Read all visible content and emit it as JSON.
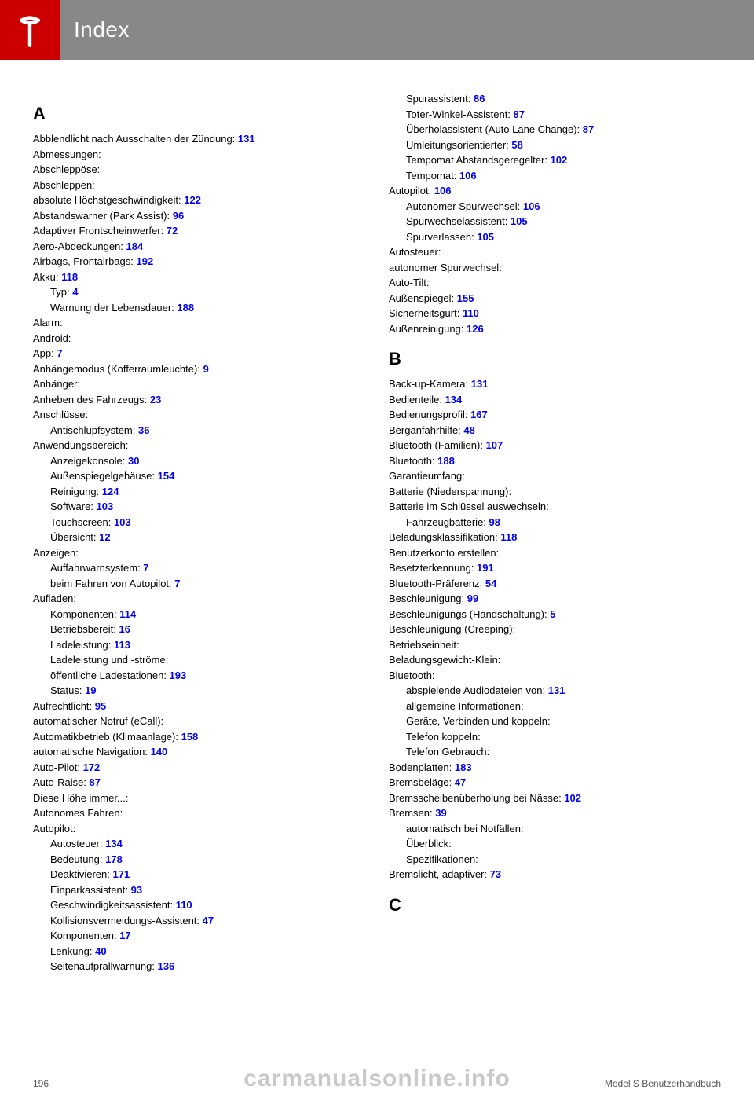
{
  "header": {
    "title": "Index"
  },
  "footer": {
    "page": "196",
    "doc": "Model S Benutzerhandbuch"
  },
  "watermark": "carmanualsonline.info",
  "left": {
    "sections": [
      {
        "letter": "A",
        "entries": [
          {
            "label": "Abblendlicht nach Ausschalten der Zündung: ",
            "page": "131",
            "sub": false
          },
          {
            "label": "Abmessungen: ",
            "page": "",
            "sub": false
          },
          {
            "label": "Abschleppöse: ",
            "page": "",
            "sub": false
          },
          {
            "label": "Abschleppen: ",
            "page": "",
            "sub": false
          },
          {
            "label": "absolute Höchstgeschwindigkeit: ",
            "page": "122",
            "sub": false
          },
          {
            "label": "Abstandswarner (Park Assist): ",
            "page": "96",
            "sub": false
          },
          {
            "label": "Adaptiver Frontscheinwerfer: ",
            "page": "72",
            "sub": false
          },
          {
            "label": "Aero-Abdeckungen: ",
            "page": "184",
            "sub": false
          },
          {
            "label": "Airbags, Frontairbags: ",
            "page": "192",
            "sub": false
          },
          {
            "label": "Akku: ",
            "page": "118",
            "sub": false
          },
          {
            "label": "Typ: ",
            "page": "4",
            "sub": true
          },
          {
            "label": "Warnung der Lebensdauer: ",
            "page": "188",
            "sub": true
          },
          {
            "label": "Alarm: ",
            "page": "",
            "sub": false
          },
          {
            "label": "Android: ",
            "page": "",
            "sub": false
          },
          {
            "label": "App: ",
            "page": "7",
            "sub": false
          },
          {
            "label": "Anhängemodus (Kofferraumleuchte): ",
            "page": "9",
            "sub": false
          },
          {
            "label": "Anhänger: ",
            "page": "",
            "sub": false
          },
          {
            "label": "Anheben des Fahrzeugs: ",
            "page": "23",
            "sub": false
          },
          {
            "label": "Anschlüsse: ",
            "page": "",
            "sub": false
          },
          {
            "label": "Antischlupfsystem: ",
            "page": "36",
            "sub": true
          },
          {
            "label": "Anwendungsbereich: ",
            "page": "",
            "sub": false
          },
          {
            "label": "Anzeigekonsole: ",
            "page": "30",
            "sub": true
          },
          {
            "label": "Außenspiegelgehäuse: ",
            "page": "154",
            "sub": true
          },
          {
            "label": "Reinigung: ",
            "page": "124",
            "sub": true
          },
          {
            "label": "Software: ",
            "page": "103",
            "sub": true
          },
          {
            "label": "Touchscreen: ",
            "page": "103",
            "sub": true
          },
          {
            "label": "Übersicht: ",
            "page": "12",
            "sub": true
          },
          {
            "label": "Anzeigen: ",
            "page": "",
            "sub": false
          },
          {
            "label": "Auffahrwarnsystem: ",
            "page": "7",
            "sub": true
          },
          {
            "label": "beim Fahren von Autopilot: ",
            "page": "7",
            "sub": true
          },
          {
            "label": "Aufladen: ",
            "page": "",
            "sub": false
          },
          {
            "label": "Komponenten: ",
            "page": "114",
            "sub": true
          },
          {
            "label": "Betriebsbereit: ",
            "page": "16",
            "sub": true
          },
          {
            "label": "Ladeleistung: ",
            "page": "113",
            "sub": true
          },
          {
            "label": "Ladeleistung und -ströme: ",
            "page": "",
            "sub": true
          },
          {
            "label": "öffentliche Ladestationen: ",
            "page": "193",
            "sub": true
          },
          {
            "label": "Status: ",
            "page": "19",
            "sub": true
          },
          {
            "label": "Aufrechtlicht: ",
            "page": "95",
            "sub": false
          },
          {
            "label": "automatischer Notruf (eCall): ",
            "page": "",
            "sub": false
          },
          {
            "label": "Automatikbetrieb (Klimaanlage): ",
            "page": "158",
            "sub": false
          },
          {
            "label": "automatische Navigation: ",
            "page": "140",
            "sub": false
          },
          {
            "label": "Auto-Pilot: ",
            "page": "172",
            "sub": false
          },
          {
            "label": "Auto-Raise: ",
            "page": "87",
            "sub": false
          },
          {
            "label": "Diese Höhe immer...: ",
            "page": "",
            "sub": false
          },
          {
            "label": "Autonomes Fahren: ",
            "page": "",
            "sub": false
          },
          {
            "label": "Autopilot: ",
            "page": "",
            "sub": false
          },
          {
            "label": "Autosteuer: ",
            "page": "134",
            "sub": true
          },
          {
            "label": "Bedeutung: ",
            "page": "178",
            "sub": true
          },
          {
            "label": "Deaktivieren: ",
            "page": "171",
            "sub": true
          },
          {
            "label": "Einparkassistent: ",
            "page": "93",
            "sub": true
          },
          {
            "label": "Geschwindigkeitsassistent: ",
            "page": "110",
            "sub": true
          },
          {
            "label": "Kollisionsvermeidungs-Assistent: ",
            "page": "47",
            "sub": true
          },
          {
            "label": "Komponenten: ",
            "page": "17",
            "sub": true
          },
          {
            "label": "Lenkung: ",
            "page": "40",
            "sub": true
          },
          {
            "label": "Seitenaufprallwarnung: ",
            "page": "136",
            "sub": true
          }
        ]
      }
    ]
  },
  "right": {
    "sections": [
      {
        "letter": "",
        "entries": [
          {
            "label": "Spurassistent: ",
            "page": "86",
            "sub": true
          },
          {
            "label": "Toter-Winkel-Assistent: ",
            "page": "87",
            "sub": true
          },
          {
            "label": "Überholassistent (Auto Lane Change): ",
            "page": "87",
            "sub": true
          },
          {
            "label": "Umleitungsorientierter: ",
            "page": "58",
            "sub": true
          },
          {
            "label": "Tempomat Abstandsgeregelter: ",
            "page": "102",
            "sub": true
          },
          {
            "label": "Tempomat: ",
            "page": "106",
            "sub": true
          },
          {
            "label": "Autopilot: ",
            "page": "106",
            "sub": false
          },
          {
            "label": "Autonomer Spurwechsel: ",
            "page": "106",
            "sub": true
          },
          {
            "label": "Spurwechselassistent: ",
            "page": "105",
            "sub": true
          },
          {
            "label": "Spurverlassen: ",
            "page": "105",
            "sub": true
          },
          {
            "label": "Autosteuer: ",
            "page": "",
            "sub": false
          },
          {
            "label": "autonomer Spurwechsel: ",
            "page": "",
            "sub": false
          },
          {
            "label": "Auto-Tilt: ",
            "page": "",
            "sub": false
          },
          {
            "label": "Außenspiegel: ",
            "page": "155",
            "sub": false
          },
          {
            "label": "Sicherheitsgurt: ",
            "page": "110",
            "sub": false
          },
          {
            "label": "Außenreinigung: ",
            "page": "126",
            "sub": false
          }
        ]
      },
      {
        "letter": "B",
        "entries": [
          {
            "label": "Back-up-Kamera: ",
            "page": "131",
            "sub": false
          },
          {
            "label": "Bedienteile: ",
            "page": "134",
            "sub": false
          },
          {
            "label": "Bedienungsprofil: ",
            "page": "167",
            "sub": false
          },
          {
            "label": "Berganfahrhilfe: ",
            "page": "48",
            "sub": false
          },
          {
            "label": "Bluetooth (Familien): ",
            "page": "107",
            "sub": false
          },
          {
            "label": "Bluetooth: ",
            "page": "188",
            "sub": false
          },
          {
            "label": "Garantieumfang: ",
            "page": "",
            "sub": false
          },
          {
            "label": "Batterie (Niederspannung): ",
            "page": "",
            "sub": false
          },
          {
            "label": "Batterie im Schlüssel auswechseln: ",
            "page": "",
            "sub": false
          },
          {
            "label": "Fahrzeugbatterie: ",
            "page": "98",
            "sub": true
          },
          {
            "label": "Beladungsklassifikation: ",
            "page": "118",
            "sub": false
          },
          {
            "label": "Benutzerkonto erstellen: ",
            "page": "",
            "sub": false
          },
          {
            "label": "Besetzterkennung: ",
            "page": "191",
            "sub": false
          },
          {
            "label": "Bluetooth-Präferenz: ",
            "page": "54",
            "sub": false
          },
          {
            "label": "Beschleunigung: ",
            "page": "99",
            "sub": false
          },
          {
            "label": "Beschleunigungs (Handschaltung): ",
            "page": "5",
            "sub": false
          },
          {
            "label": "Beschleunigung (Creeping): ",
            "page": "",
            "sub": false
          },
          {
            "label": "Betriebseinheit: ",
            "page": "",
            "sub": false
          },
          {
            "label": "Beladungsgewicht-Klein: ",
            "page": "",
            "sub": false
          },
          {
            "label": "Bluetooth: ",
            "page": "",
            "sub": false
          },
          {
            "label": "abspielende Audiodateien von: ",
            "page": "131",
            "sub": true
          },
          {
            "label": "allgemeine Informationen: ",
            "page": "",
            "sub": true
          },
          {
            "label": "Geräte, Verbinden und koppeln: ",
            "page": "",
            "sub": true
          },
          {
            "label": "Telefon koppeln: ",
            "page": "",
            "sub": true
          },
          {
            "label": "Telefon Gebrauch: ",
            "page": "",
            "sub": true
          },
          {
            "label": "Bodenplatten: ",
            "page": "183",
            "sub": false
          },
          {
            "label": "Bremsbeläge: ",
            "page": "47",
            "sub": false
          },
          {
            "label": "Bremsscheibenüberholung bei Nässe: ",
            "page": "102",
            "sub": false
          },
          {
            "label": "Bremsen: ",
            "page": "39",
            "sub": false
          },
          {
            "label": "automatisch bei Notfällen: ",
            "page": "",
            "sub": true
          },
          {
            "label": "Überblick: ",
            "page": "",
            "sub": true
          },
          {
            "label": "Spezifikationen: ",
            "page": "",
            "sub": true
          },
          {
            "label": "Bremslicht, adaptiver: ",
            "page": "73",
            "sub": false
          }
        ]
      },
      {
        "letter": "C",
        "entries": []
      }
    ]
  }
}
